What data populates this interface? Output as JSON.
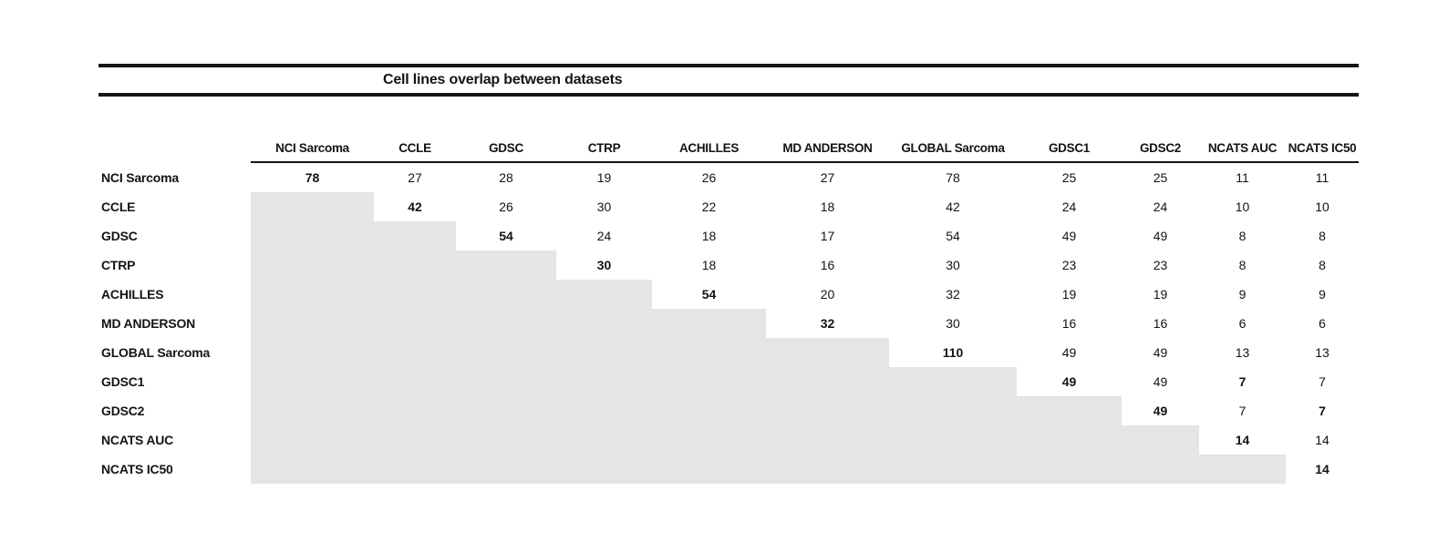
{
  "title": "Cell lines overlap between datasets",
  "table": {
    "columns": [
      "NCI Sarcoma",
      "CCLE",
      "GDSC",
      "CTRP",
      "ACHILLES",
      "MD ANDERSON",
      "GLOBAL Sarcoma",
      "GDSC1",
      "GDSC2",
      "NCATS AUC",
      "NCATS IC50"
    ],
    "rows": [
      {
        "label": "NCI Sarcoma",
        "values": [
          78,
          27,
          28,
          19,
          26,
          27,
          78,
          25,
          25,
          11,
          11
        ]
      },
      {
        "label": "CCLE",
        "values": [
          null,
          42,
          26,
          30,
          22,
          18,
          42,
          24,
          24,
          10,
          10
        ]
      },
      {
        "label": "GDSC",
        "values": [
          null,
          null,
          54,
          24,
          18,
          17,
          54,
          49,
          49,
          8,
          8
        ]
      },
      {
        "label": "CTRP",
        "values": [
          null,
          null,
          null,
          30,
          18,
          16,
          30,
          23,
          23,
          8,
          8
        ]
      },
      {
        "label": "ACHILLES",
        "values": [
          null,
          null,
          null,
          null,
          54,
          20,
          32,
          19,
          19,
          9,
          9
        ]
      },
      {
        "label": "MD ANDERSON",
        "values": [
          null,
          null,
          null,
          null,
          null,
          32,
          30,
          16,
          16,
          6,
          6
        ]
      },
      {
        "label": "GLOBAL Sarcoma",
        "values": [
          null,
          null,
          null,
          null,
          null,
          null,
          110,
          49,
          49,
          13,
          13
        ]
      },
      {
        "label": "GDSC1",
        "values": [
          null,
          null,
          null,
          null,
          null,
          null,
          null,
          49,
          49,
          7,
          7
        ]
      },
      {
        "label": "GDSC2",
        "values": [
          null,
          null,
          null,
          null,
          null,
          null,
          null,
          null,
          49,
          7,
          7
        ]
      },
      {
        "label": "NCATS AUC",
        "values": [
          null,
          null,
          null,
          null,
          null,
          null,
          null,
          null,
          null,
          14,
          14
        ]
      },
      {
        "label": "NCATS IC50",
        "values": [
          null,
          null,
          null,
          null,
          null,
          null,
          null,
          null,
          null,
          null,
          14
        ]
      }
    ],
    "diagonal_bold": true,
    "extra_bold_cells": [
      [
        7,
        9
      ],
      [
        8,
        10
      ]
    ]
  },
  "colors": {
    "shaded_cell": "#e6e4e5",
    "rule": "#161616",
    "text": "#141414"
  }
}
